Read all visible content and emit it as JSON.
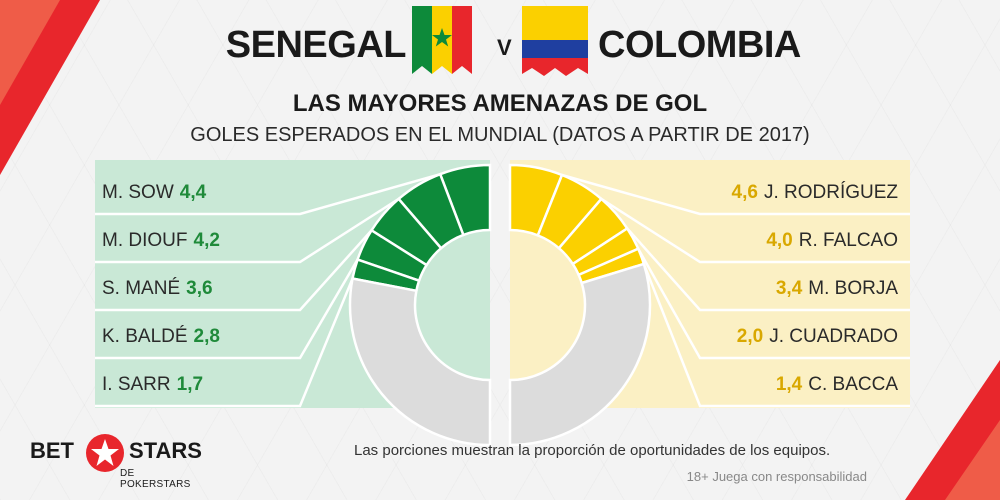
{
  "header": {
    "team_left": "SENEGAL",
    "vs": "V",
    "team_right": "COLOMBIA",
    "title": "LAS MAYORES AMENAZAS DE GOL",
    "subtitle": "GOLES ESPERADOS EN EL MUNDIAL (DATOS A PARTIR DE 2017)"
  },
  "colors": {
    "senegal": "#0d8a3a",
    "colombia": "#fbd000",
    "remainder": "#dcdcdc",
    "panel_left": "#c9e8d6",
    "panel_right": "#fbf0c4",
    "accent_red": "#e8262c"
  },
  "chart_data": {
    "type": "pie",
    "title": "LAS MAYORES AMENAZAS DE GOL",
    "series": [
      {
        "name": "SENEGAL",
        "categories": [
          "M. SOW",
          "M. DIOUF",
          "S. MANÉ",
          "K. BALDÉ",
          "I. SARR"
        ],
        "values": [
          4.4,
          4.2,
          3.6,
          2.8,
          1.7
        ],
        "value_labels": [
          "4,4",
          "4,2",
          "3,6",
          "2,8",
          "1,7"
        ]
      },
      {
        "name": "COLOMBIA",
        "categories": [
          "J. RODRÍGUEZ",
          "R. FALCAO",
          "M. BORJA",
          "J. CUADRADO",
          "C. BACCA"
        ],
        "values": [
          4.6,
          4.0,
          3.4,
          2.0,
          1.4
        ],
        "value_labels": [
          "4,6",
          "4,0",
          "3,4",
          "2,0",
          "1,4"
        ]
      }
    ],
    "half_total": 38,
    "note": "Las porciones muestran la proporción de oportunidades de los equipos."
  },
  "footer": {
    "logo_bet": "BET",
    "logo_stars": "STARS",
    "logo_sub": "DE POKERSTARS",
    "disclaimer": "18+ Juega con responsabilidad"
  }
}
